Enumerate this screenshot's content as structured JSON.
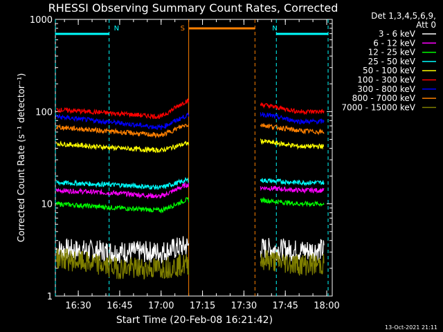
{
  "chart_data": {
    "type": "line",
    "title": "RHESSI Observing Summary Count Rates, Corrected",
    "xlabel": "Start Time (20-Feb-08 16:21:42)",
    "ylabel": "Corrected Count Rate (s⁻¹ detector⁻¹)",
    "y_scale": "log",
    "ylim": [
      1,
      1000
    ],
    "xlim": [
      "16:21:42",
      "18:02:00"
    ],
    "xtick_labels": [
      "16:30",
      "16:45",
      "17:00",
      "17:15",
      "17:30",
      "17:45",
      "18:00"
    ],
    "ytick_labels": [
      "1",
      "10",
      "100",
      "1000"
    ],
    "legend_header": [
      "Det 1,3,4,5,6,9,",
      "Att 0"
    ],
    "legend_position": "right",
    "series": [
      {
        "name": "3 - 6 keV",
        "color": "#ffffff",
        "values": [
          [
            "16:22",
            3.2
          ],
          [
            "16:45",
            3.0
          ],
          [
            "17:00",
            3.0
          ],
          [
            "17:09",
            3.5
          ],
          [
            "17:36",
            3.3
          ],
          [
            "17:50",
            3.1
          ],
          [
            "17:59",
            3.2
          ]
        ]
      },
      {
        "name": "6 - 12 keV",
        "color": "#ff00ff",
        "values": [
          [
            "16:22",
            14
          ],
          [
            "16:45",
            13
          ],
          [
            "17:00",
            12
          ],
          [
            "17:09",
            16
          ],
          [
            "17:36",
            15
          ],
          [
            "17:50",
            14
          ],
          [
            "17:59",
            14
          ]
        ]
      },
      {
        "name": "12 - 25 keV",
        "color": "#00ff00",
        "values": [
          [
            "16:22",
            10
          ],
          [
            "16:45",
            9
          ],
          [
            "17:00",
            8.5
          ],
          [
            "17:09",
            11
          ],
          [
            "17:36",
            11
          ],
          [
            "17:50",
            10
          ],
          [
            "17:59",
            10
          ]
        ]
      },
      {
        "name": "25 - 50 keV",
        "color": "#00ffff",
        "values": [
          [
            "16:22",
            17
          ],
          [
            "16:45",
            16
          ],
          [
            "17:00",
            15
          ],
          [
            "17:09",
            18
          ],
          [
            "17:36",
            18
          ],
          [
            "17:50",
            17
          ],
          [
            "17:59",
            17
          ]
        ]
      },
      {
        "name": "50 - 100 keV",
        "color": "#ffff00",
        "values": [
          [
            "16:22",
            45
          ],
          [
            "16:45",
            40
          ],
          [
            "17:00",
            38
          ],
          [
            "17:09",
            45
          ],
          [
            "17:36",
            48
          ],
          [
            "17:50",
            42
          ],
          [
            "17:59",
            42
          ]
        ]
      },
      {
        "name": "100 - 300 keV",
        "color": "#ff0000",
        "values": [
          [
            "16:22",
            105
          ],
          [
            "16:45",
            95
          ],
          [
            "17:00",
            88
          ],
          [
            "17:09",
            130
          ],
          [
            "17:36",
            120
          ],
          [
            "17:50",
            100
          ],
          [
            "17:59",
            100
          ]
        ]
      },
      {
        "name": "300 - 800 keV",
        "color": "#0000ff",
        "values": [
          [
            "16:22",
            88
          ],
          [
            "16:45",
            75
          ],
          [
            "17:00",
            67
          ],
          [
            "17:09",
            90
          ],
          [
            "17:36",
            95
          ],
          [
            "17:50",
            78
          ],
          [
            "17:59",
            78
          ]
        ]
      },
      {
        "name": "800 - 7000 keV",
        "color": "#ff8000",
        "values": [
          [
            "16:22",
            68
          ],
          [
            "16:45",
            60
          ],
          [
            "17:00",
            55
          ],
          [
            "17:09",
            72
          ],
          [
            "17:36",
            72
          ],
          [
            "17:50",
            62
          ],
          [
            "17:59",
            60
          ]
        ]
      },
      {
        "name": "7000 - 15000 keV",
        "color": "#808000",
        "values": [
          [
            "16:22",
            2.6
          ],
          [
            "16:45",
            2.0
          ],
          [
            "17:00",
            2.0
          ],
          [
            "17:09",
            2.2
          ],
          [
            "17:36",
            2.5
          ],
          [
            "17:50",
            2.2
          ],
          [
            "17:59",
            2.2
          ]
        ]
      }
    ],
    "annotations": [
      {
        "label": "N",
        "color": "#00ffff",
        "start": "16:21:42",
        "end": "16:41:10"
      },
      {
        "label": "N",
        "color": "#00ffff",
        "start": "17:41:45",
        "end": "18:00:30"
      },
      {
        "label": "S",
        "color": "#ff8000",
        "start": "17:10:00",
        "end": "17:34:00"
      }
    ],
    "data_gaps": [
      [
        "17:10:00",
        "17:36:00"
      ]
    ],
    "footer": "13-Oct-2021 21:11"
  }
}
